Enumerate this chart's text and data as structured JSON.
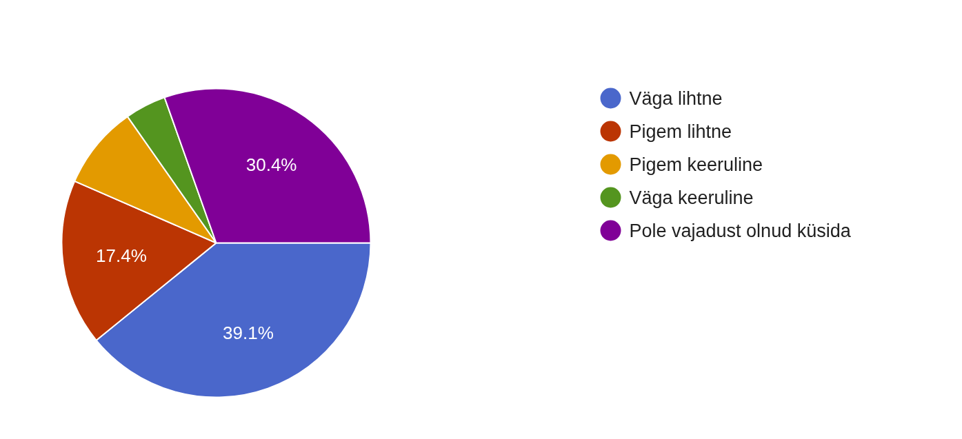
{
  "chart_data": {
    "type": "pie",
    "categories": [
      "Väga lihtne",
      "Pigem lihtne",
      "Pigem keeruline",
      "Väga keeruline",
      "Pole vajadust olnud küsida"
    ],
    "values": [
      39.1,
      17.4,
      8.7,
      4.3,
      30.4
    ],
    "colors": [
      "#4a67cb",
      "#bb3503",
      "#e39a00",
      "#54951f",
      "#800097"
    ],
    "value_labels": [
      "39.1%",
      "17.4%",
      null,
      null,
      "30.4%"
    ],
    "legend": "right"
  }
}
